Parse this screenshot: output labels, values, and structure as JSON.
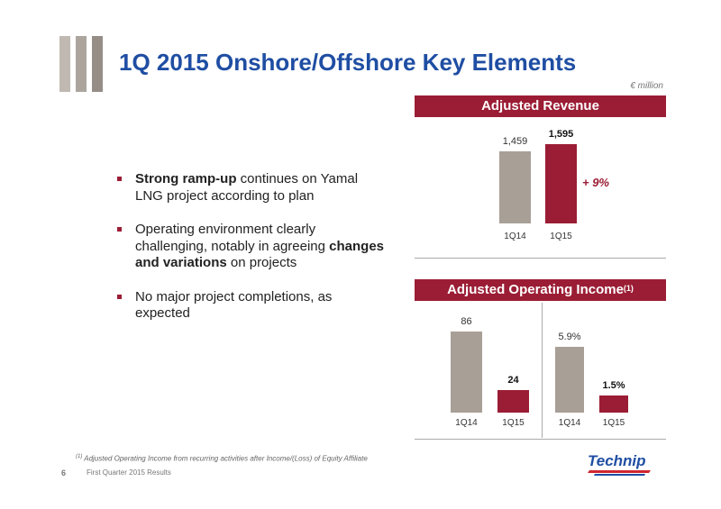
{
  "title": "1Q 2015 Onshore/Offshore Key Elements",
  "unit": "€ million",
  "bullets": [
    {
      "bold": "Strong ramp-up",
      "text": " continues on Yamal LNG project according to plan"
    },
    {
      "pre": "Operating environment clearly challenging, notably in agreeing ",
      "bold": "changes and variations",
      "post": " on projects"
    },
    {
      "text": "No major project completions, as expected"
    }
  ],
  "revenue_panel": {
    "title": "Adjusted Revenue",
    "growth": "+ 9%"
  },
  "operating_panel": {
    "title": "Adjusted Operating Income",
    "superscript": "(1)"
  },
  "chart_data": [
    {
      "type": "bar",
      "title": "Adjusted Revenue",
      "categories": [
        "1Q14",
        "1Q15"
      ],
      "values": [
        1459,
        1595
      ],
      "value_labels": [
        "1,459",
        "1,595"
      ],
      "colors": [
        "#a89f97",
        "#9b1d35"
      ],
      "annotation": "+ 9%"
    },
    {
      "type": "bar",
      "title": "Adjusted Operating Income",
      "categories": [
        "1Q14",
        "1Q15"
      ],
      "values": [
        86,
        24
      ],
      "value_labels": [
        "86",
        "24"
      ],
      "colors": [
        "#a89f97",
        "#9b1d35"
      ]
    },
    {
      "type": "bar",
      "categories": [
        "1Q14",
        "1Q15"
      ],
      "values": [
        5.9,
        1.5
      ],
      "value_labels": [
        "5.9%",
        "1.5%"
      ],
      "colors": [
        "#a89f97",
        "#9b1d35"
      ]
    }
  ],
  "footnote": {
    "marker": "(1)",
    "text": " Adjusted Operating Income from recurring activities after Income/(Loss) of Equity Affiliate"
  },
  "page_number": "6",
  "footer_text": "First Quarter 2015 Results",
  "logo_text": "Technip",
  "colors": {
    "title": "#1f4ea3",
    "accent": "#9b1d35",
    "gray_bar": "#a89f97"
  }
}
